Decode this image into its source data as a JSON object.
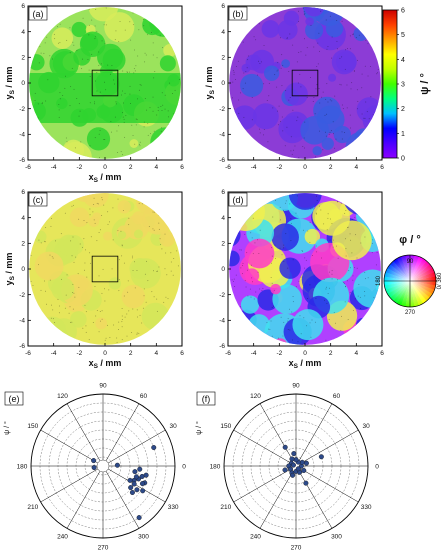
{
  "chart_data": [
    {
      "panel": "(a)",
      "type": "heatmap",
      "xlabel": "x",
      "xlabel_sub": "S",
      "xlabel_unit": " / mm",
      "ylabel": "y",
      "ylabel_sub": "S",
      "ylabel_unit": " / mm",
      "xticks": [
        "-6",
        "-4",
        "-2",
        "0",
        "2",
        "4",
        "6"
      ],
      "yticks": [
        "6",
        "4",
        "2",
        "0",
        "-2",
        "-4",
        "-6"
      ],
      "xlim": [
        -6,
        6
      ],
      "ylim": [
        -6,
        6
      ],
      "dominant_colors": [
        "#9be35c",
        "#d8ec5a",
        "#2fd42f"
      ],
      "inset_box": [
        -1,
        1,
        -1,
        1
      ],
      "show_xlabel": true,
      "show_ylabel": true
    },
    {
      "panel": "(b)",
      "type": "heatmap",
      "xlabel": "",
      "xlabel_sub": "",
      "xlabel_unit": "",
      "ylabel": "y",
      "ylabel_sub": "S",
      "ylabel_unit": " / mm",
      "xticks": [
        "-6",
        "-4",
        "-2",
        "0",
        "2",
        "4",
        "6"
      ],
      "yticks": [
        "6",
        "4",
        "2",
        "0",
        "-2",
        "-4",
        "-6"
      ],
      "xlim": [
        -6,
        6
      ],
      "ylim": [
        -6,
        6
      ],
      "dominant_colors": [
        "#8c3cd6",
        "#6a35e6",
        "#3a5ce0"
      ],
      "inset_box": [
        -1,
        1,
        -1,
        1
      ],
      "show_xlabel": false,
      "show_ylabel": true
    },
    {
      "panel": "(c)",
      "type": "heatmap",
      "xlabel": "x",
      "xlabel_sub": "S",
      "xlabel_unit": " / mm",
      "ylabel": "y",
      "ylabel_sub": "S",
      "ylabel_unit": " / mm",
      "xticks": [
        "-6",
        "-4",
        "-2",
        "0",
        "2",
        "4",
        "6"
      ],
      "yticks": [
        "6",
        "4",
        "2",
        "0",
        "-2",
        "-4",
        "-6"
      ],
      "xlim": [
        -6,
        6
      ],
      "ylim": [
        -6,
        6
      ],
      "dominant_colors": [
        "#e6e65a",
        "#d2e65a",
        "#f0d860"
      ],
      "inset_box": [
        -1,
        1,
        -1,
        1
      ],
      "show_xlabel": true,
      "show_ylabel": true
    },
    {
      "panel": "(d)",
      "type": "heatmap",
      "xlabel": "x",
      "xlabel_sub": "S",
      "xlabel_unit": " / mm",
      "ylabel": "",
      "ylabel_sub": "",
      "ylabel_unit": "",
      "xticks": [
        "-6",
        "-4",
        "-2",
        "0",
        "2",
        "4",
        "6"
      ],
      "yticks": [
        "6",
        "4",
        "2",
        "0",
        "-2",
        "-4",
        "-6"
      ],
      "xlim": [
        -6,
        6
      ],
      "ylim": [
        -6,
        6
      ],
      "dominant_colors": [
        "#b040ff",
        "#2a2ae6",
        "#ff3cc8",
        "#f0f050",
        "#40e0f0"
      ],
      "inset_box": null,
      "show_xlabel": true,
      "show_ylabel": false
    },
    {
      "panel": "(e)",
      "type": "scatter",
      "coordinate_system": "polar",
      "angle_labels": [
        "0",
        "30",
        "60",
        "90",
        "120",
        "150",
        "180",
        "210",
        "240",
        "270",
        "300",
        "330"
      ],
      "radial_label": "ψ / °",
      "points": [
        {
          "angle": 340,
          "r": 4.2
        },
        {
          "angle": 335,
          "r": 3.8
        },
        {
          "angle": 345,
          "r": 4.5
        },
        {
          "angle": 330,
          "r": 4.0
        },
        {
          "angle": 350,
          "r": 3.6
        },
        {
          "angle": 338,
          "r": 5.0
        },
        {
          "angle": 325,
          "r": 4.6
        },
        {
          "angle": 332,
          "r": 3.4
        },
        {
          "angle": 342,
          "r": 3.9
        },
        {
          "angle": 328,
          "r": 5.2
        },
        {
          "angle": 318,
          "r": 4.4
        },
        {
          "angle": 355,
          "r": 4.1
        },
        {
          "angle": 336,
          "r": 4.8
        },
        {
          "angle": 322,
          "r": 3.9
        },
        {
          "angle": 348,
          "r": 4.9
        },
        {
          "angle": 20,
          "r": 6.0
        },
        {
          "angle": 305,
          "r": 7.0
        },
        {
          "angle": 150,
          "r": 1.2
        },
        {
          "angle": 190,
          "r": 1.0
        },
        {
          "angle": 3,
          "r": 1.6
        }
      ]
    },
    {
      "panel": "(f)",
      "type": "scatter",
      "coordinate_system": "polar",
      "angle_labels": [
        "0",
        "30",
        "60",
        "90",
        "120",
        "150",
        "180",
        "210",
        "240",
        "270",
        "300",
        "330"
      ],
      "radial_label": "ψ / °",
      "points": [
        {
          "angle": 0,
          "r": 0.6
        },
        {
          "angle": 30,
          "r": 0.8
        },
        {
          "angle": 60,
          "r": 0.5
        },
        {
          "angle": 90,
          "r": 0.7
        },
        {
          "angle": 120,
          "r": 0.9
        },
        {
          "angle": 150,
          "r": 0.6
        },
        {
          "angle": 180,
          "r": 0.8
        },
        {
          "angle": 210,
          "r": 0.7
        },
        {
          "angle": 240,
          "r": 0.9
        },
        {
          "angle": 270,
          "r": 0.6
        },
        {
          "angle": 300,
          "r": 0.8
        },
        {
          "angle": 330,
          "r": 1.0
        },
        {
          "angle": 15,
          "r": 1.2
        },
        {
          "angle": 200,
          "r": 1.3
        },
        {
          "angle": 100,
          "r": 1.4
        },
        {
          "angle": 250,
          "r": 1.1
        },
        {
          "angle": 310,
          "r": 0.4
        },
        {
          "angle": 160,
          "r": 0.3
        },
        {
          "angle": 120,
          "r": 2.4
        },
        {
          "angle": 20,
          "r": 3.0
        },
        {
          "angle": 300,
          "r": 2.2
        }
      ]
    }
  ],
  "colorbar": {
    "label": "ψ / °",
    "ticks": [
      "0",
      "1",
      "2",
      "3",
      "4",
      "5",
      "6"
    ],
    "range": [
      0,
      6
    ],
    "colors": [
      "#8b00ff",
      "#4b00ff",
      "#0000ff",
      "#00c0ff",
      "#00ff80",
      "#40ff00",
      "#c0ff00",
      "#ffff00",
      "#ffa000",
      "#ff4000",
      "#cc0000"
    ]
  },
  "color_wheel": {
    "label": "φ / °",
    "labels": [
      "90",
      "180",
      "270",
      "0/ 360"
    ]
  }
}
